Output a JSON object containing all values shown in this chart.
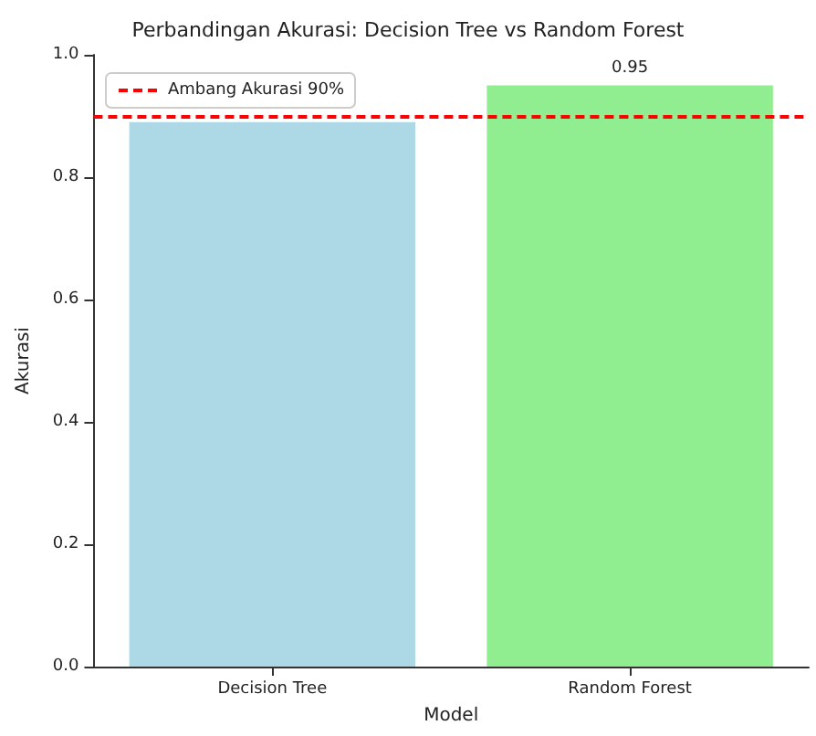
{
  "chart_data": {
    "type": "bar",
    "title": "Perbandingan Akurasi: Decision Tree vs Random Forest",
    "xlabel": "Model",
    "ylabel": "Akurasi",
    "categories": [
      "Decision Tree",
      "Random Forest"
    ],
    "values": [
      0.89,
      0.95
    ],
    "colors": [
      "#add8e6",
      "#90ee90"
    ],
    "value_labels": [
      null,
      "0.95"
    ],
    "ylim": [
      0,
      1
    ],
    "yticks": [
      {
        "value": 0,
        "label": "0.0"
      },
      0.2,
      0.4,
      0.6,
      0.8,
      {
        "value": 1,
        "label": "1.0"
      }
    ],
    "ref_lines": [
      {
        "axis": "y",
        "value": 0.9,
        "label": "Ambang Akurasi 90%",
        "color": "#ff0000",
        "line_style": "dashed"
      }
    ],
    "legend": "top left",
    "grid": false
  }
}
